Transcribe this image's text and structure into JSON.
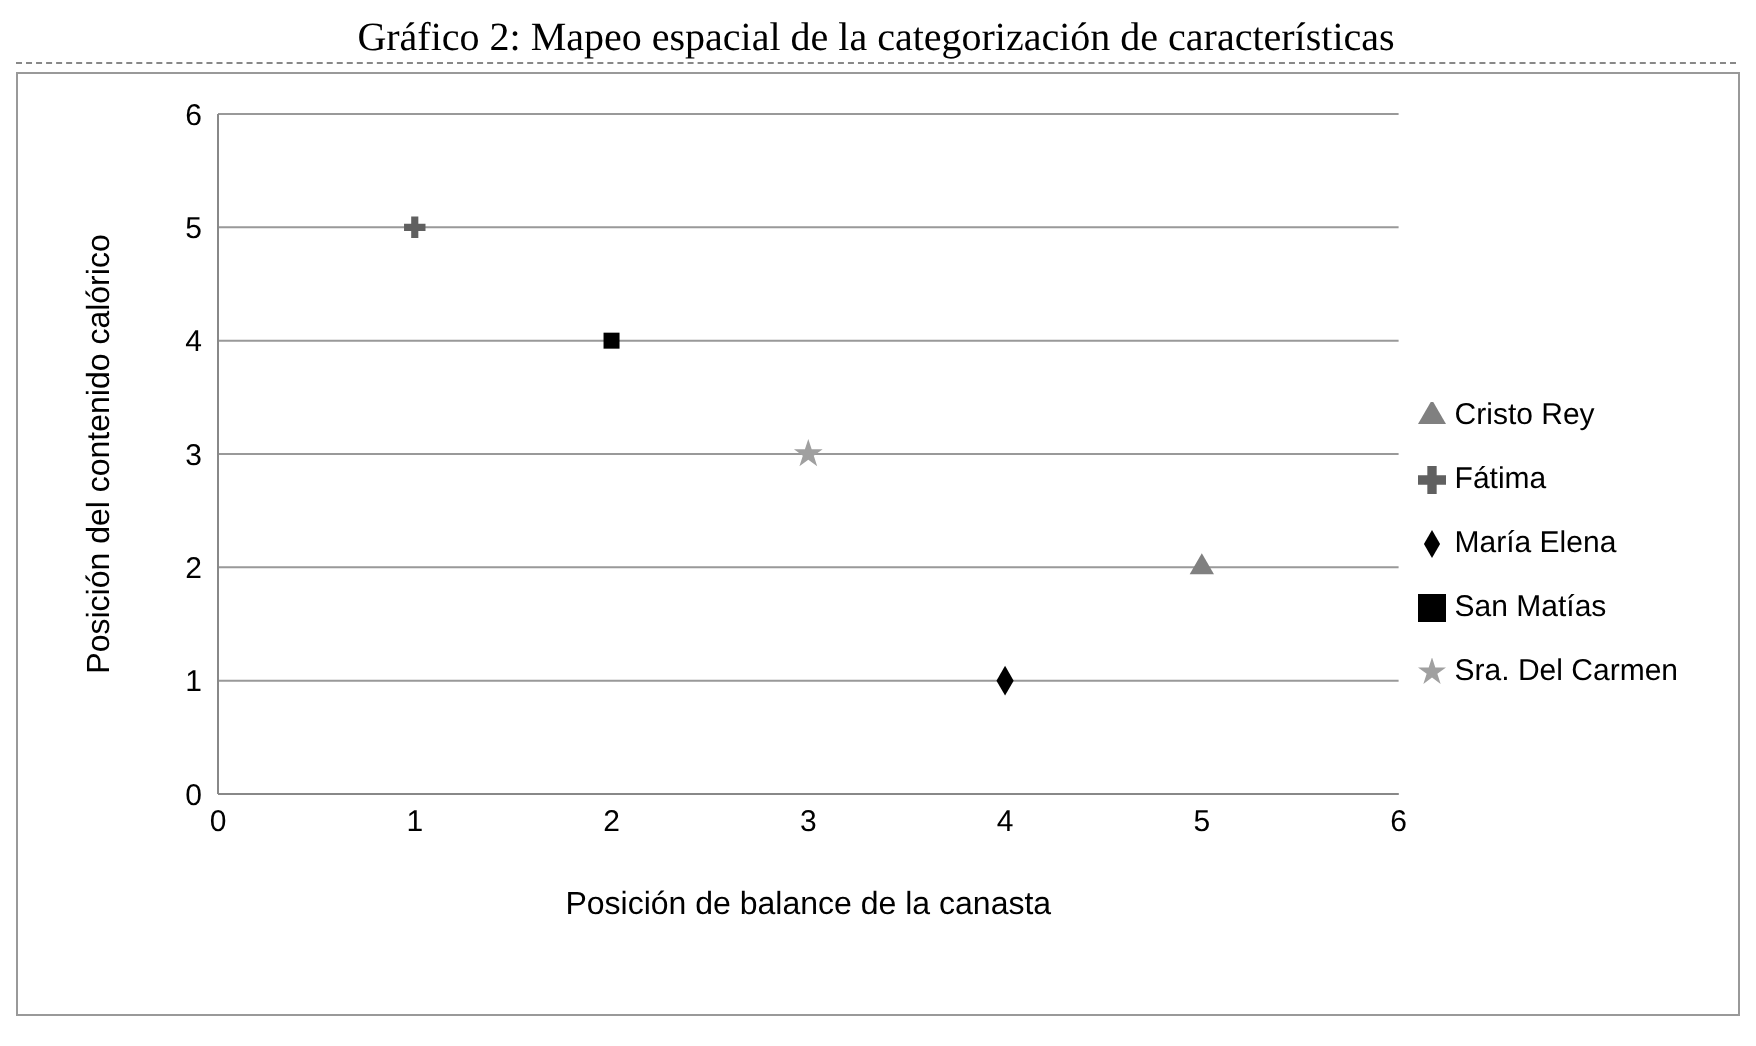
{
  "chart_data": {
    "type": "scatter",
    "title": "Gráfico 2: Mapeo espacial de la categorización de características",
    "xlabel": "Posición de balance de la canasta",
    "ylabel": "Posición del contenido calórico",
    "xlim": [
      0,
      6
    ],
    "xticks": [
      0,
      1,
      2,
      3,
      4,
      5,
      6
    ],
    "ylim": [
      0,
      6
    ],
    "yticks": [
      0,
      1,
      2,
      3,
      4,
      5,
      6
    ],
    "grid": "y",
    "legend": "right",
    "series": [
      {
        "name": "San Matías",
        "color": "#000000",
        "marker": "square",
        "x": [
          2
        ],
        "values": [
          4
        ]
      },
      {
        "name": "María Elena",
        "color": "#000000",
        "marker": "diamond",
        "x": [
          4
        ],
        "values": [
          1
        ]
      },
      {
        "name": "Cristo Rey",
        "color": "#808080",
        "marker": "triangle",
        "x": [
          5
        ],
        "values": [
          2
        ]
      },
      {
        "name": "Fátima",
        "color": "#606060",
        "marker": "cross",
        "x": [
          1
        ],
        "values": [
          5
        ]
      },
      {
        "name": "Sra. Del Carmen",
        "color": "#a0a0a0",
        "marker": "star",
        "x": [
          3
        ],
        "values": [
          3
        ]
      }
    ]
  }
}
